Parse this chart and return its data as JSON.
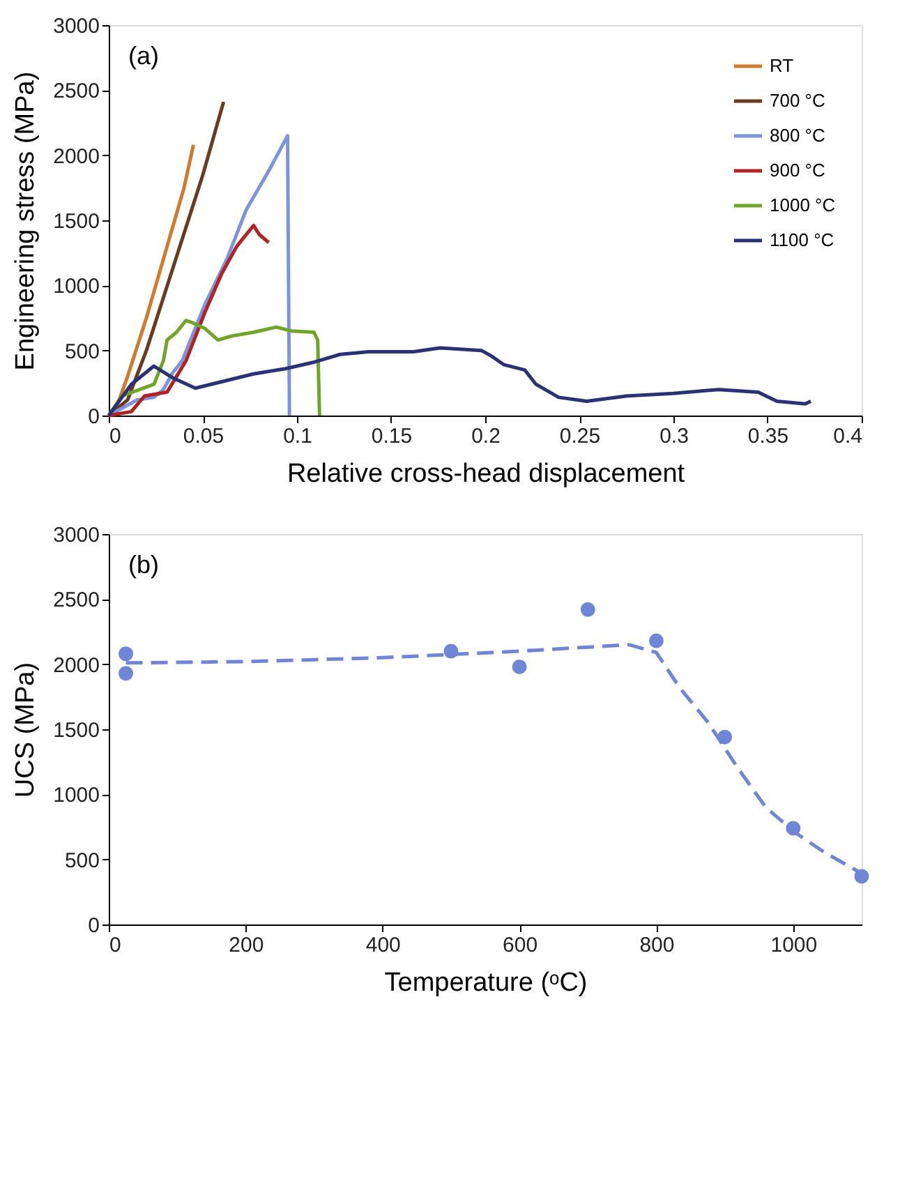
{
  "chart_data": [
    {
      "type": "line",
      "xlabel": "Relative cross-head displacement",
      "ylabel": "Engineering stress (MPa)",
      "annotations": [
        "(a)"
      ],
      "xlim": [
        0,
        0.4
      ],
      "xticks": [
        0,
        0.05,
        0.1,
        0.15,
        0.2,
        0.25,
        0.3,
        0.35,
        0.4
      ],
      "ylim": [
        0,
        3000
      ],
      "yticks": [
        0,
        500,
        1000,
        1500,
        2000,
        2500,
        3000
      ],
      "grid": false,
      "legend": "top right",
      "line_style": "solid",
      "marker": "none",
      "series": [
        {
          "name": "RT",
          "color": "#d07a2e",
          "x": [
            0,
            0.005,
            0.01,
            0.02,
            0.03,
            0.04,
            0.045
          ],
          "values": [
            0,
            100,
            300,
            750,
            1250,
            1750,
            2080
          ]
        },
        {
          "name": "700 °C",
          "color": "#6b3a1e",
          "x": [
            0,
            0.01,
            0.02,
            0.03,
            0.04,
            0.05,
            0.061
          ],
          "values": [
            0,
            120,
            500,
            950,
            1400,
            1850,
            2410
          ]
        },
        {
          "name": "800 °C",
          "color": "#7b94dc",
          "x": [
            0,
            0.015,
            0.024,
            0.029,
            0.034,
            0.039,
            0.051,
            0.063,
            0.073,
            0.085,
            0.095,
            0.096
          ],
          "values": [
            0,
            120,
            140,
            200,
            330,
            420,
            850,
            1210,
            1580,
            1880,
            2150,
            0
          ]
        },
        {
          "name": "900 °C",
          "color": "#b22222",
          "x": [
            0,
            0.012,
            0.019,
            0.031,
            0.041,
            0.051,
            0.06,
            0.068,
            0.073,
            0.077,
            0.08,
            0.085
          ],
          "values": [
            0,
            30,
            150,
            180,
            420,
            790,
            1090,
            1300,
            1390,
            1460,
            1390,
            1330
          ]
        },
        {
          "name": "1000 °C",
          "color": "#6fa52a",
          "x": [
            0,
            0.007,
            0.024,
            0.029,
            0.031,
            0.036,
            0.041,
            0.045,
            0.051,
            0.058,
            0.065,
            0.077,
            0.089,
            0.097,
            0.109,
            0.111,
            0.112
          ],
          "values": [
            0,
            150,
            240,
            420,
            580,
            640,
            730,
            710,
            670,
            580,
            610,
            640,
            680,
            650,
            640,
            580,
            0
          ]
        },
        {
          "name": "1100 °C",
          "color": "#2a3275",
          "x": [
            0,
            0.012,
            0.024,
            0.034,
            0.046,
            0.06,
            0.077,
            0.094,
            0.109,
            0.123,
            0.138,
            0.162,
            0.176,
            0.198,
            0.203,
            0.21,
            0.221,
            0.227,
            0.239,
            0.254,
            0.275,
            0.3,
            0.324,
            0.345,
            0.355,
            0.37,
            0.373
          ],
          "values": [
            0,
            240,
            380,
            290,
            210,
            260,
            320,
            360,
            410,
            470,
            490,
            490,
            520,
            500,
            460,
            390,
            350,
            240,
            140,
            110,
            150,
            170,
            200,
            180,
            110,
            90,
            110
          ]
        }
      ]
    },
    {
      "type": "scatter",
      "xlabel": "Temperature (ᵒC)",
      "ylabel": "UCS (MPa)",
      "annotations": [
        "(b)"
      ],
      "xlim": [
        0,
        1100
      ],
      "xticks": [
        0,
        200,
        400,
        600,
        800,
        1000
      ],
      "ylim": [
        0,
        3000
      ],
      "yticks": [
        0,
        500,
        1000,
        1500,
        2000,
        2500,
        3000
      ],
      "grid": false,
      "legend": false,
      "marker": "circle",
      "series": [
        {
          "type": "scatter",
          "color": "#6f86d6",
          "x": [
            25,
            25,
            500,
            600,
            700,
            800,
            900,
            1000,
            1100
          ],
          "values": [
            2080,
            1930,
            2100,
            1980,
            2420,
            2180,
            1440,
            740,
            370
          ]
        },
        {
          "type": "line",
          "line_style": "dashed",
          "marker": "none",
          "color": "#6f86d6",
          "x": [
            25,
            200,
            400,
            600,
            760,
            800,
            834,
            876,
            918,
            960,
            1002,
            1044,
            1094
          ],
          "values": [
            2010,
            2020,
            2050,
            2100,
            2150,
            2090,
            1820,
            1550,
            1210,
            900,
            710,
            560,
            410
          ]
        }
      ]
    }
  ]
}
